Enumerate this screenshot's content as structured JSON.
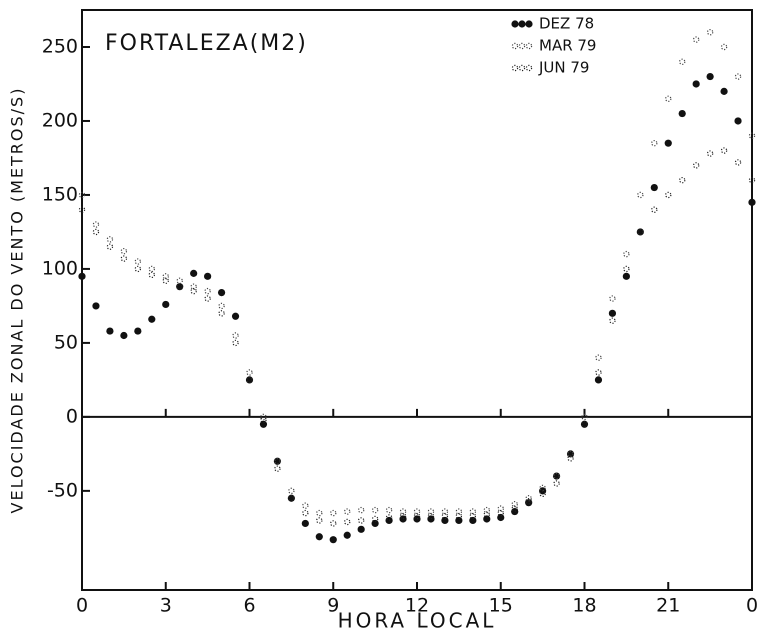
{
  "chart_data": {
    "type": "scatter",
    "title": "FORTALEZA(M2)",
    "x_label": "HORA LOCAL",
    "y_label": "VELOCIDADE ZONAL DO VENTO (METROS/S)",
    "x": [
      0,
      0.5,
      1,
      1.5,
      2,
      2.5,
      3,
      3.5,
      4,
      4.5,
      5,
      5.5,
      6,
      6.5,
      7,
      7.5,
      8,
      8.5,
      9,
      9.5,
      10,
      10.5,
      11,
      11.5,
      12,
      12.5,
      13,
      13.5,
      14,
      14.5,
      15,
      15.5,
      16,
      16.5,
      17,
      17.5,
      18,
      18.5,
      19,
      19.5,
      20,
      20.5,
      21,
      21.5,
      22,
      22.5,
      23,
      23.5,
      24
    ],
    "series": [
      {
        "name": "DEZ 78",
        "color": "#111111",
        "marker": "filled-dot",
        "values": [
          95,
          75,
          58,
          55,
          58,
          66,
          76,
          88,
          97,
          95,
          84,
          68,
          25,
          -5,
          -30,
          -55,
          -72,
          -81,
          -83,
          -80,
          -76,
          -72,
          -70,
          -69,
          -69,
          -69,
          -70,
          -70,
          -70,
          -69,
          -68,
          -64,
          -58,
          -50,
          -40,
          -25,
          -5,
          25,
          70,
          95,
          125,
          155,
          185,
          205,
          225,
          230,
          220,
          200,
          145
        ]
      },
      {
        "name": "MAR 79",
        "color": "#444444",
        "marker": "small-dot",
        "values": [
          150,
          130,
          120,
          112,
          105,
          100,
          95,
          92,
          88,
          85,
          75,
          55,
          30,
          0,
          -30,
          -50,
          -60,
          -65,
          -65,
          -64,
          -63,
          -63,
          -63,
          -64,
          -64,
          -64,
          -64,
          -64,
          -64,
          -63,
          -62,
          -59,
          -55,
          -48,
          -40,
          -25,
          0,
          40,
          80,
          110,
          150,
          185,
          215,
          240,
          255,
          260,
          250,
          230,
          190
        ]
      },
      {
        "name": "JUN 79",
        "color": "#222222",
        "marker": "small-dot",
        "values": [
          140,
          125,
          115,
          107,
          100,
          96,
          92,
          88,
          85,
          80,
          70,
          50,
          25,
          -2,
          -35,
          -55,
          -65,
          -70,
          -72,
          -71,
          -70,
          -69,
          -68,
          -67,
          -67,
          -67,
          -67,
          -67,
          -67,
          -66,
          -65,
          -62,
          -57,
          -52,
          -45,
          -28,
          -5,
          30,
          65,
          100,
          125,
          140,
          150,
          160,
          170,
          178,
          180,
          172,
          160
        ]
      }
    ],
    "xlim": [
      0,
      24
    ],
    "xticks": [
      0,
      3,
      6,
      9,
      12,
      15,
      18,
      21,
      {
        "value": 24,
        "label": "0"
      }
    ],
    "ylim": [
      -117,
      275
    ],
    "yticks": [
      -50,
      0,
      50,
      100,
      150,
      200,
      250
    ],
    "legend": "top-right"
  }
}
